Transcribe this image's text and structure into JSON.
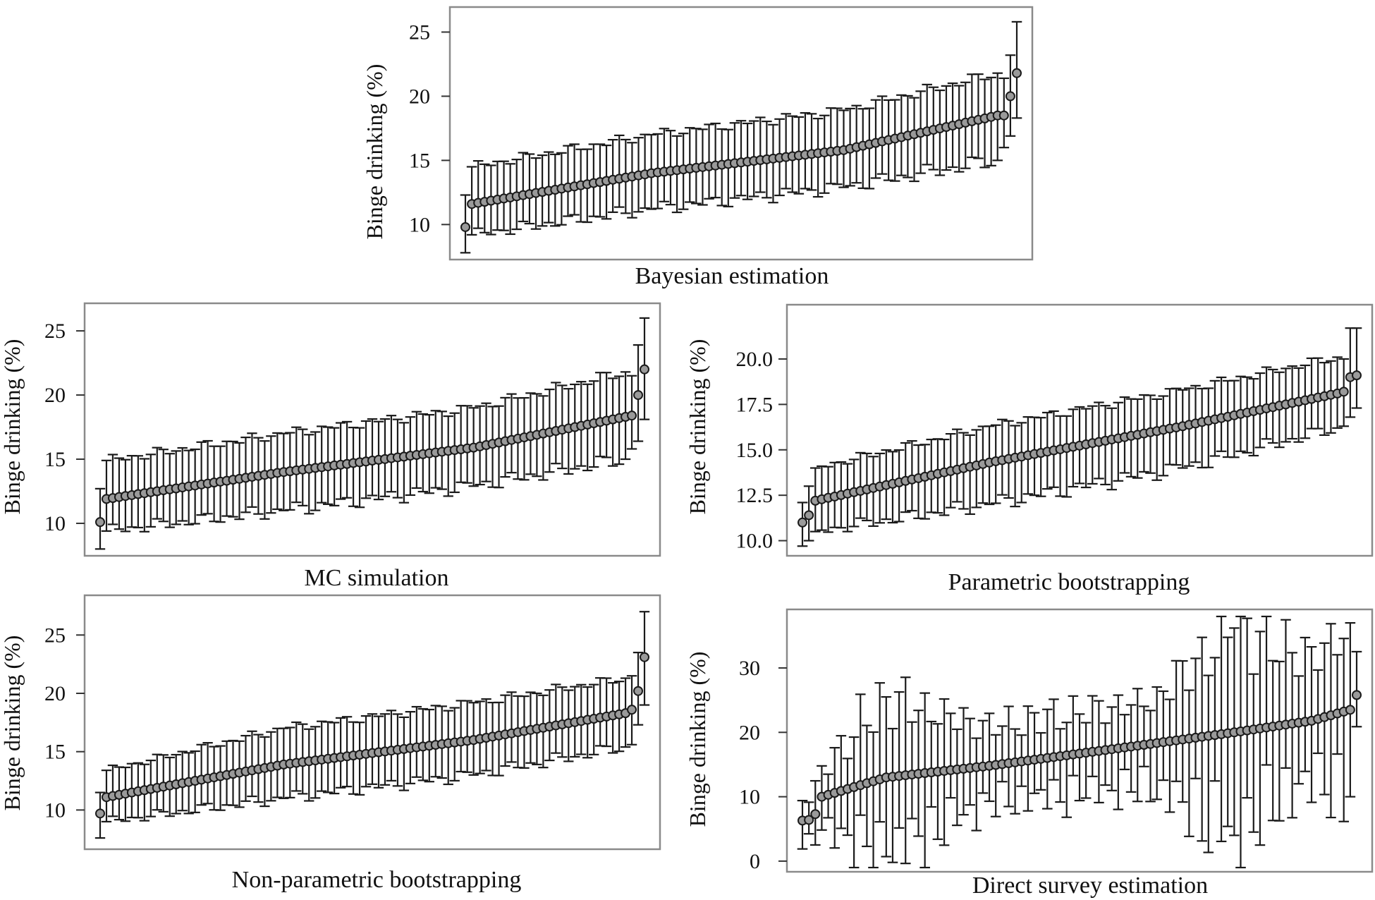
{
  "chart_data": [
    {
      "type": "scatter",
      "caption": "Bayesian estimation",
      "ylabel": "Binge drinking (%)",
      "ylim": [
        7.6,
        26.4
      ],
      "yticks": [
        "10",
        "15",
        "20",
        "25"
      ],
      "ytick_values": [
        10,
        15,
        20,
        25
      ],
      "error_bars": true,
      "n": 87,
      "series": [
        {
          "points": [
            {
              "k": 1,
              "y": 9.8,
              "lo": 7.8,
              "hi": 12.3
            },
            {
              "k": 2,
              "y": 11.6,
              "lo": 9.2,
              "hi": 14.5
            },
            {
              "k": 30,
              "y": 14.0,
              "lo": 11.2,
              "hi": 17.0
            },
            {
              "k": 60,
              "y": 15.8,
              "lo": 12.9,
              "hi": 18.9
            },
            {
              "k": 84,
              "y": 18.5,
              "lo": 15.0,
              "hi": 21.8
            },
            {
              "k": 85,
              "y": 18.5,
              "lo": 16.0,
              "hi": 21.4
            },
            {
              "k": 86,
              "y": 20.0,
              "lo": 16.9,
              "hi": 23.2
            },
            {
              "k": 87,
              "y": 21.8,
              "lo": 18.3,
              "hi": 25.8
            }
          ]
        }
      ]
    },
    {
      "type": "scatter",
      "caption": "MC simulation",
      "ylabel": "Binge drinking (%)",
      "ylim": [
        7.8,
        26.6
      ],
      "yticks": [
        "10",
        "15",
        "20",
        "25"
      ],
      "ytick_values": [
        10,
        15,
        20,
        25
      ],
      "error_bars": true,
      "n": 87,
      "series": [
        {
          "points": [
            {
              "k": 1,
              "y": 10.1,
              "lo": 8.0,
              "hi": 12.7
            },
            {
              "k": 2,
              "y": 11.9,
              "lo": 9.4,
              "hi": 14.9
            },
            {
              "k": 30,
              "y": 14.0,
              "lo": 11.0,
              "hi": 17.0
            },
            {
              "k": 60,
              "y": 15.9,
              "lo": 12.9,
              "hi": 19.0
            },
            {
              "k": 84,
              "y": 18.3,
              "lo": 15.0,
              "hi": 21.8
            },
            {
              "k": 85,
              "y": 18.4,
              "lo": 15.8,
              "hi": 21.5
            },
            {
              "k": 86,
              "y": 20.0,
              "lo": 16.4,
              "hi": 23.9
            },
            {
              "k": 87,
              "y": 22.0,
              "lo": 18.1,
              "hi": 26.0
            }
          ]
        }
      ]
    },
    {
      "type": "scatter",
      "caption": "Parametric bootstrapping",
      "ylabel": "Binge drinking (%)",
      "ylim": [
        9.4,
        22.6
      ],
      "yticks": [
        "10.0",
        "12.5",
        "15.0",
        "17.5",
        "20.0"
      ],
      "ytick_values": [
        10,
        12.5,
        15,
        17.5,
        20
      ],
      "error_bars": true,
      "n": 87,
      "series": [
        {
          "points": [
            {
              "k": 1,
              "y": 11.0,
              "lo": 9.7,
              "hi": 12.1
            },
            {
              "k": 2,
              "y": 11.4,
              "lo": 10.0,
              "hi": 13.0
            },
            {
              "k": 3,
              "y": 12.2,
              "lo": 10.5,
              "hi": 14.0
            },
            {
              "k": 30,
              "y": 14.3,
              "lo": 12.0,
              "hi": 16.3
            },
            {
              "k": 60,
              "y": 16.3,
              "lo": 14.0,
              "hi": 18.3
            },
            {
              "k": 84,
              "y": 18.1,
              "lo": 16.2,
              "hi": 20.1
            },
            {
              "k": 85,
              "y": 18.2,
              "lo": 16.3,
              "hi": 20.0
            },
            {
              "k": 86,
              "y": 19.0,
              "lo": 16.8,
              "hi": 21.7
            },
            {
              "k": 87,
              "y": 19.1,
              "lo": 17.3,
              "hi": 21.7
            }
          ]
        }
      ]
    },
    {
      "type": "scatter",
      "caption": "Non-parametric bootstrapping",
      "ylabel": "Binge drinking (%)",
      "ylim": [
        7.0,
        27.8
      ],
      "yticks": [
        "10",
        "15",
        "20",
        "25"
      ],
      "ytick_values": [
        10,
        15,
        20,
        25
      ],
      "error_bars": true,
      "n": 87,
      "series": [
        {
          "points": [
            {
              "k": 1,
              "y": 9.7,
              "lo": 7.6,
              "hi": 11.5
            },
            {
              "k": 2,
              "y": 11.1,
              "lo": 9.0,
              "hi": 13.4
            },
            {
              "k": 30,
              "y": 13.9,
              "lo": 11.0,
              "hi": 17.0
            },
            {
              "k": 60,
              "y": 16.0,
              "lo": 13.0,
              "hi": 19.2
            },
            {
              "k": 84,
              "y": 18.3,
              "lo": 15.4,
              "hi": 21.3
            },
            {
              "k": 85,
              "y": 18.6,
              "lo": 15.6,
              "hi": 21.5
            },
            {
              "k": 86,
              "y": 20.2,
              "lo": 17.3,
              "hi": 23.5
            },
            {
              "k": 87,
              "y": 23.1,
              "lo": 19.0,
              "hi": 27.0
            }
          ]
        }
      ]
    },
    {
      "type": "scatter",
      "caption": "Direct survey estimation",
      "ylabel": "Binge drinking (%)",
      "ylim": [
        -1.0,
        38.0
      ],
      "yticks": [
        "0",
        "10",
        "20",
        "30"
      ],
      "ytick_values": [
        0,
        10,
        20,
        30
      ],
      "error_bars": true,
      "n": 87,
      "series": [
        {
          "points": [
            {
              "k": 1,
              "y": 6.3,
              "lo": 3.0,
              "hi": 9.8
            },
            {
              "k": 2,
              "y": 6.4,
              "lo": 2.5,
              "hi": 10.2
            },
            {
              "k": 3,
              "y": 7.3,
              "lo": 3.5,
              "hi": 11.3
            },
            {
              "k": 4,
              "y": 10.0,
              "lo": 5.3,
              "hi": 14.4
            },
            {
              "k": 14,
              "y": 13.0,
              "lo": 0.7,
              "hi": 25.5
            },
            {
              "k": 30,
              "y": 14.8,
              "lo": 9.0,
              "hi": 21.0
            },
            {
              "k": 55,
              "y": 18.2,
              "lo": 11.5,
              "hi": 25.0
            },
            {
              "k": 68,
              "y": 20.0,
              "lo": 4.0,
              "hi": 36.2
            },
            {
              "k": 80,
              "y": 21.8,
              "lo": 13.0,
              "hi": 32.0
            },
            {
              "k": 86,
              "y": 23.5,
              "lo": 10.0,
              "hi": 37.0
            },
            {
              "k": 87,
              "y": 25.8,
              "lo": 18.0,
              "hi": 33.5
            }
          ]
        }
      ]
    }
  ]
}
